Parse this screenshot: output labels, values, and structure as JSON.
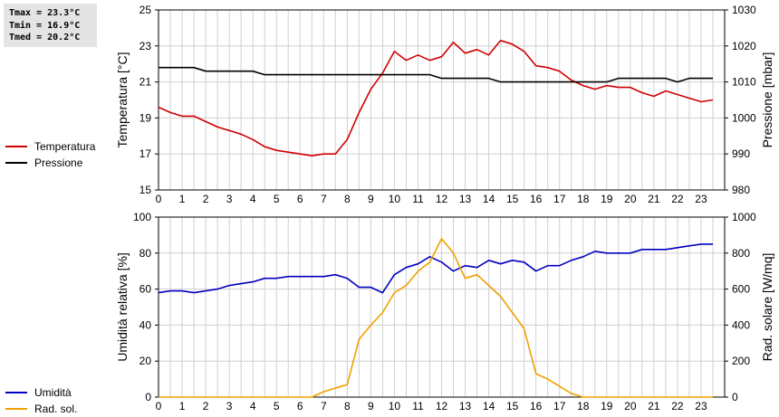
{
  "stats": {
    "tmax": "Tmax = 23.3°C",
    "tmin": "Tmin = 16.9°C",
    "tmed": "Tmed = 20.2°C"
  },
  "chart_data": [
    {
      "type": "line",
      "xlim": [
        0,
        24
      ],
      "x_ticks": [
        0,
        1,
        2,
        3,
        4,
        5,
        6,
        7,
        8,
        9,
        10,
        11,
        12,
        13,
        14,
        15,
        16,
        17,
        18,
        19,
        20,
        21,
        22,
        23
      ],
      "ylabel": "Temperatura [°C]",
      "ylim": [
        15,
        25
      ],
      "y_ticks": [
        15,
        17,
        19,
        21,
        23,
        25
      ],
      "y2label": "Pressione [mbar]",
      "y2lim": [
        980,
        1030
      ],
      "y2_ticks": [
        980,
        990,
        1000,
        1010,
        1020,
        1030
      ],
      "grid": true,
      "legend": "left",
      "series": [
        {
          "name": "Temperatura",
          "axis": "left",
          "color": "#d00000",
          "x": [
            0,
            0.5,
            1,
            1.5,
            2,
            2.5,
            3,
            3.5,
            4,
            4.5,
            5,
            5.5,
            6,
            6.5,
            7,
            7.5,
            8,
            8.5,
            9,
            9.5,
            10,
            10.5,
            11,
            11.5,
            12,
            12.5,
            13,
            13.5,
            14,
            14.5,
            15,
            15.5,
            16,
            16.5,
            17,
            17.5,
            18,
            18.5,
            19,
            19.5,
            20,
            20.5,
            21,
            21.5,
            22,
            22.5,
            23,
            23.5
          ],
          "y": [
            19.6,
            19.3,
            19.1,
            19.1,
            18.8,
            18.5,
            18.3,
            18.1,
            17.8,
            17.4,
            17.2,
            17.1,
            17.0,
            16.9,
            17.0,
            17.0,
            17.8,
            19.3,
            20.6,
            21.5,
            22.7,
            22.2,
            22.5,
            22.2,
            22.4,
            23.2,
            22.6,
            22.8,
            22.5,
            23.3,
            23.1,
            22.7,
            21.9,
            21.8,
            21.6,
            21.1,
            20.8,
            20.6,
            20.8,
            20.7,
            20.7,
            20.4,
            20.2,
            20.5,
            20.3,
            20.1,
            19.9,
            20.0
          ]
        },
        {
          "name": "Pressione",
          "axis": "right",
          "color": "#000000",
          "x": [
            0,
            0.5,
            1,
            1.5,
            2,
            2.5,
            3,
            3.5,
            4,
            4.5,
            5,
            5.5,
            6,
            6.5,
            7,
            7.5,
            8,
            8.5,
            9,
            9.5,
            10,
            10.5,
            11,
            11.5,
            12,
            12.5,
            13,
            13.5,
            14,
            14.5,
            15,
            15.5,
            16,
            16.5,
            17,
            17.5,
            18,
            18.5,
            19,
            19.5,
            20,
            20.5,
            21,
            21.5,
            22,
            22.5,
            23,
            23.5
          ],
          "y": [
            1014,
            1014,
            1014,
            1014,
            1013,
            1013,
            1013,
            1013,
            1013,
            1012,
            1012,
            1012,
            1012,
            1012,
            1012,
            1012,
            1012,
            1012,
            1012,
            1012,
            1012,
            1012,
            1012,
            1012,
            1011,
            1011,
            1011,
            1011,
            1011,
            1010,
            1010,
            1010,
            1010,
            1010,
            1010,
            1010,
            1010,
            1010,
            1010,
            1011,
            1011,
            1011,
            1011,
            1011,
            1010,
            1011,
            1011,
            1011
          ]
        }
      ]
    },
    {
      "type": "line",
      "xlim": [
        0,
        24
      ],
      "x_ticks": [
        0,
        1,
        2,
        3,
        4,
        5,
        6,
        7,
        8,
        9,
        10,
        11,
        12,
        13,
        14,
        15,
        16,
        17,
        18,
        19,
        20,
        21,
        22,
        23
      ],
      "ylabel": "Umidità relativa [%]",
      "ylim": [
        0,
        100
      ],
      "y_ticks": [
        0,
        20,
        40,
        60,
        80,
        100
      ],
      "y2label": "Rad. solare [W/mq]",
      "y2lim": [
        0,
        1000
      ],
      "y2_ticks": [
        0,
        200,
        400,
        600,
        800,
        1000
      ],
      "grid": true,
      "legend": "left",
      "series": [
        {
          "name": "Umidità",
          "axis": "left",
          "color": "#0000c0",
          "x": [
            0,
            0.5,
            1,
            1.5,
            2,
            2.5,
            3,
            3.5,
            4,
            4.5,
            5,
            5.5,
            6,
            6.5,
            7,
            7.5,
            8,
            8.5,
            9,
            9.5,
            10,
            10.5,
            11,
            11.5,
            12,
            12.5,
            13,
            13.5,
            14,
            14.5,
            15,
            15.5,
            16,
            16.5,
            17,
            17.5,
            18,
            18.5,
            19,
            19.5,
            20,
            20.5,
            21,
            21.5,
            22,
            22.5,
            23,
            23.5
          ],
          "y": [
            58,
            59,
            59,
            58,
            59,
            60,
            62,
            63,
            64,
            66,
            66,
            67,
            67,
            67,
            67,
            68,
            66,
            61,
            61,
            58,
            68,
            72,
            74,
            78,
            75,
            70,
            73,
            72,
            76,
            74,
            76,
            75,
            70,
            73,
            73,
            76,
            78,
            81,
            80,
            80,
            80,
            82,
            82,
            82,
            83,
            84,
            85,
            85
          ]
        },
        {
          "name": "Rad. sol.",
          "axis": "right",
          "color": "#f0a000",
          "x": [
            0,
            0.5,
            1,
            1.5,
            2,
            2.5,
            3,
            3.5,
            4,
            4.5,
            5,
            5.5,
            6,
            6.5,
            7,
            7.5,
            8,
            8.5,
            9,
            9.5,
            10,
            10.5,
            11,
            11.5,
            12,
            12.5,
            13,
            13.5,
            14,
            14.5,
            15,
            15.5,
            16,
            16.5,
            17,
            17.5,
            18,
            18.5,
            19,
            19.5,
            20,
            20.5,
            21,
            21.5,
            22,
            22.5,
            23,
            23.5
          ],
          "y": [
            0,
            0,
            0,
            0,
            0,
            0,
            0,
            0,
            0,
            0,
            0,
            0,
            0,
            0,
            30,
            50,
            70,
            320,
            400,
            470,
            580,
            620,
            700,
            750,
            880,
            800,
            660,
            680,
            620,
            560,
            470,
            380,
            130,
            100,
            60,
            20,
            0,
            0,
            0,
            0,
            0,
            0,
            0,
            0,
            0,
            0,
            0,
            0
          ]
        }
      ]
    }
  ]
}
